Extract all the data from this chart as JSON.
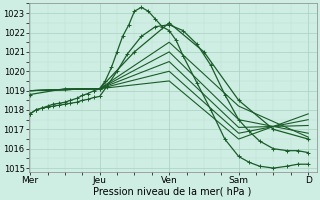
{
  "bg_color": "#ceeee4",
  "grid_color_major": "#aacfbf",
  "grid_color_minor": "#bdddd0",
  "line_color": "#1a5c28",
  "ylim": [
    1014.8,
    1023.5
  ],
  "yticks": [
    1015,
    1016,
    1017,
    1018,
    1019,
    1020,
    1021,
    1022,
    1023
  ],
  "xlim": [
    -0.02,
    4.12
  ],
  "xtick_labels": [
    "Mer",
    "Jeu",
    "Ven",
    "Sam",
    "D"
  ],
  "xtick_positions": [
    0,
    1,
    2,
    3,
    4
  ],
  "xlabel": "Pression niveau de la mer( hPa )",
  "series": [
    {
      "x": [
        0.0,
        0.08,
        0.17,
        0.25,
        0.33,
        0.42,
        0.5,
        0.58,
        0.67,
        0.75,
        0.83,
        0.92,
        1.0,
        1.08,
        1.17,
        1.25,
        1.33,
        1.42,
        1.5,
        1.6,
        1.7,
        1.8,
        1.9,
        2.0,
        2.1,
        2.2,
        2.4,
        2.6,
        2.8,
        3.0,
        3.15,
        3.3,
        3.5,
        3.7,
        3.85,
        4.0
      ],
      "y": [
        1017.8,
        1018.0,
        1018.1,
        1018.2,
        1018.3,
        1018.35,
        1018.4,
        1018.5,
        1018.6,
        1018.75,
        1018.85,
        1019.0,
        1019.1,
        1019.5,
        1020.2,
        1021.0,
        1021.8,
        1022.4,
        1023.1,
        1023.3,
        1023.1,
        1022.7,
        1022.3,
        1022.1,
        1021.6,
        1020.8,
        1019.4,
        1018.0,
        1016.5,
        1015.6,
        1015.3,
        1015.1,
        1015.0,
        1015.1,
        1015.2,
        1015.2
      ],
      "marker": true
    },
    {
      "x": [
        0.0,
        0.08,
        0.17,
        0.25,
        0.33,
        0.42,
        0.5,
        0.58,
        0.67,
        0.75,
        0.83,
        0.92,
        1.0,
        1.1,
        1.25,
        1.4,
        1.6,
        1.8,
        2.0,
        2.2,
        2.4,
        2.6,
        2.8,
        3.0,
        3.15,
        3.3,
        3.5,
        3.7,
        3.85,
        4.0
      ],
      "y": [
        1017.8,
        1018.0,
        1018.1,
        1018.15,
        1018.2,
        1018.25,
        1018.3,
        1018.35,
        1018.4,
        1018.5,
        1018.55,
        1018.65,
        1018.7,
        1019.2,
        1020.0,
        1020.9,
        1021.8,
        1022.3,
        1022.4,
        1022.1,
        1021.4,
        1020.3,
        1018.8,
        1017.5,
        1016.9,
        1016.4,
        1016.0,
        1015.9,
        1015.9,
        1015.8
      ],
      "marker": true
    },
    {
      "x": [
        0.0,
        0.5,
        1.0,
        1.5,
        2.0,
        2.5,
        3.0,
        3.5,
        4.0
      ],
      "y": [
        1018.8,
        1019.1,
        1019.1,
        1021.0,
        1022.5,
        1021.0,
        1018.5,
        1017.0,
        1016.5
      ],
      "marker": true,
      "marker_dense": true
    },
    {
      "x": [
        0.0,
        1.0,
        2.0,
        3.0,
        4.0
      ],
      "y": [
        1019.0,
        1019.1,
        1021.5,
        1018.2,
        1016.6
      ],
      "marker": false
    },
    {
      "x": [
        0.0,
        1.0,
        2.0,
        3.0,
        4.0
      ],
      "y": [
        1019.0,
        1019.1,
        1021.0,
        1017.5,
        1016.8
      ],
      "marker": false
    },
    {
      "x": [
        0.0,
        1.0,
        2.0,
        3.0,
        4.0
      ],
      "y": [
        1019.0,
        1019.1,
        1020.5,
        1017.1,
        1017.2
      ],
      "marker": false
    },
    {
      "x": [
        0.0,
        1.0,
        2.0,
        3.0,
        4.0
      ],
      "y": [
        1019.0,
        1019.1,
        1020.0,
        1016.8,
        1017.5
      ],
      "marker": false
    },
    {
      "x": [
        0.0,
        1.0,
        2.0,
        3.0,
        4.0
      ],
      "y": [
        1019.0,
        1019.1,
        1019.5,
        1016.5,
        1017.8
      ],
      "marker": false
    }
  ]
}
